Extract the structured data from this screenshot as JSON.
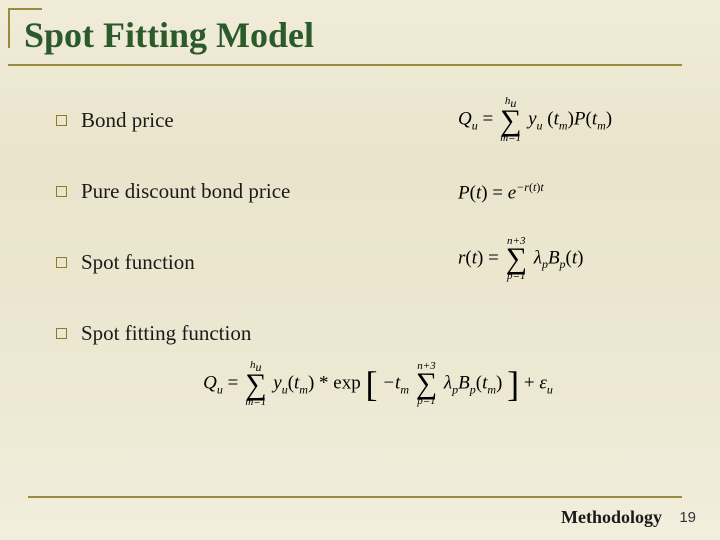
{
  "slide": {
    "title": "Spot Fitting Model",
    "bullets": [
      {
        "label": "Bond price"
      },
      {
        "label": "Pure discount bond price"
      },
      {
        "label": "Spot function"
      },
      {
        "label": "Spot fitting function"
      }
    ],
    "formulas": {
      "bond_price": {
        "lhs": "Q",
        "lhs_sub": "u",
        "sum_upper": "h",
        "sum_upper_sub": "u",
        "sum_lower": "m=1",
        "term1": "y",
        "term1_sub": "u",
        "arg1": "t",
        "arg1_sub": "m",
        "term2": "P",
        "arg2": "t",
        "arg2_sub": "m"
      },
      "pure_discount": {
        "lhs": "P",
        "arg": "t",
        "rhs_base": "e",
        "exp_neg": "−r",
        "exp_arg": "t",
        "exp_tail": "t"
      },
      "spot_function": {
        "lhs": "r",
        "arg": "t",
        "sum_upper": "n+3",
        "sum_lower": "p=1",
        "coef": "λ",
        "coef_sub": "p",
        "basis": "B",
        "basis_sub": "p",
        "barg": "t"
      },
      "spot_fitting": {
        "lhs": "Q",
        "lhs_sub": "u",
        "outer_sum_upper": "h",
        "outer_sum_upper_sub": "u",
        "outer_sum_lower": "m=1",
        "y": "y",
        "y_sub": "u",
        "t": "t",
        "t_sub": "m",
        "op": "*",
        "fn": "exp",
        "neg_t": "−t",
        "neg_t_sub": "m",
        "inner_sum_upper": "n+3",
        "inner_sum_lower": "p=1",
        "coef": "λ",
        "coef_sub": "p",
        "basis": "B",
        "basis_sub": "p",
        "barg": "t",
        "barg_sub": "m",
        "eps": "ε",
        "eps_sub": "u"
      }
    },
    "footer": {
      "section": "Methodology",
      "page": "19"
    }
  },
  "style": {
    "accent_color": "#9a8a3f",
    "title_color": "#2b5a2b",
    "background_gradient": [
      "#f0ecd8",
      "#eae4cc",
      "#ede8d2",
      "#f2eedd"
    ],
    "title_fontsize": 36,
    "bullet_fontsize": 21,
    "formula_fontsize": 19,
    "footer_fontsize": 18,
    "page_fontsize": 15,
    "bullet_box_size": 11
  }
}
